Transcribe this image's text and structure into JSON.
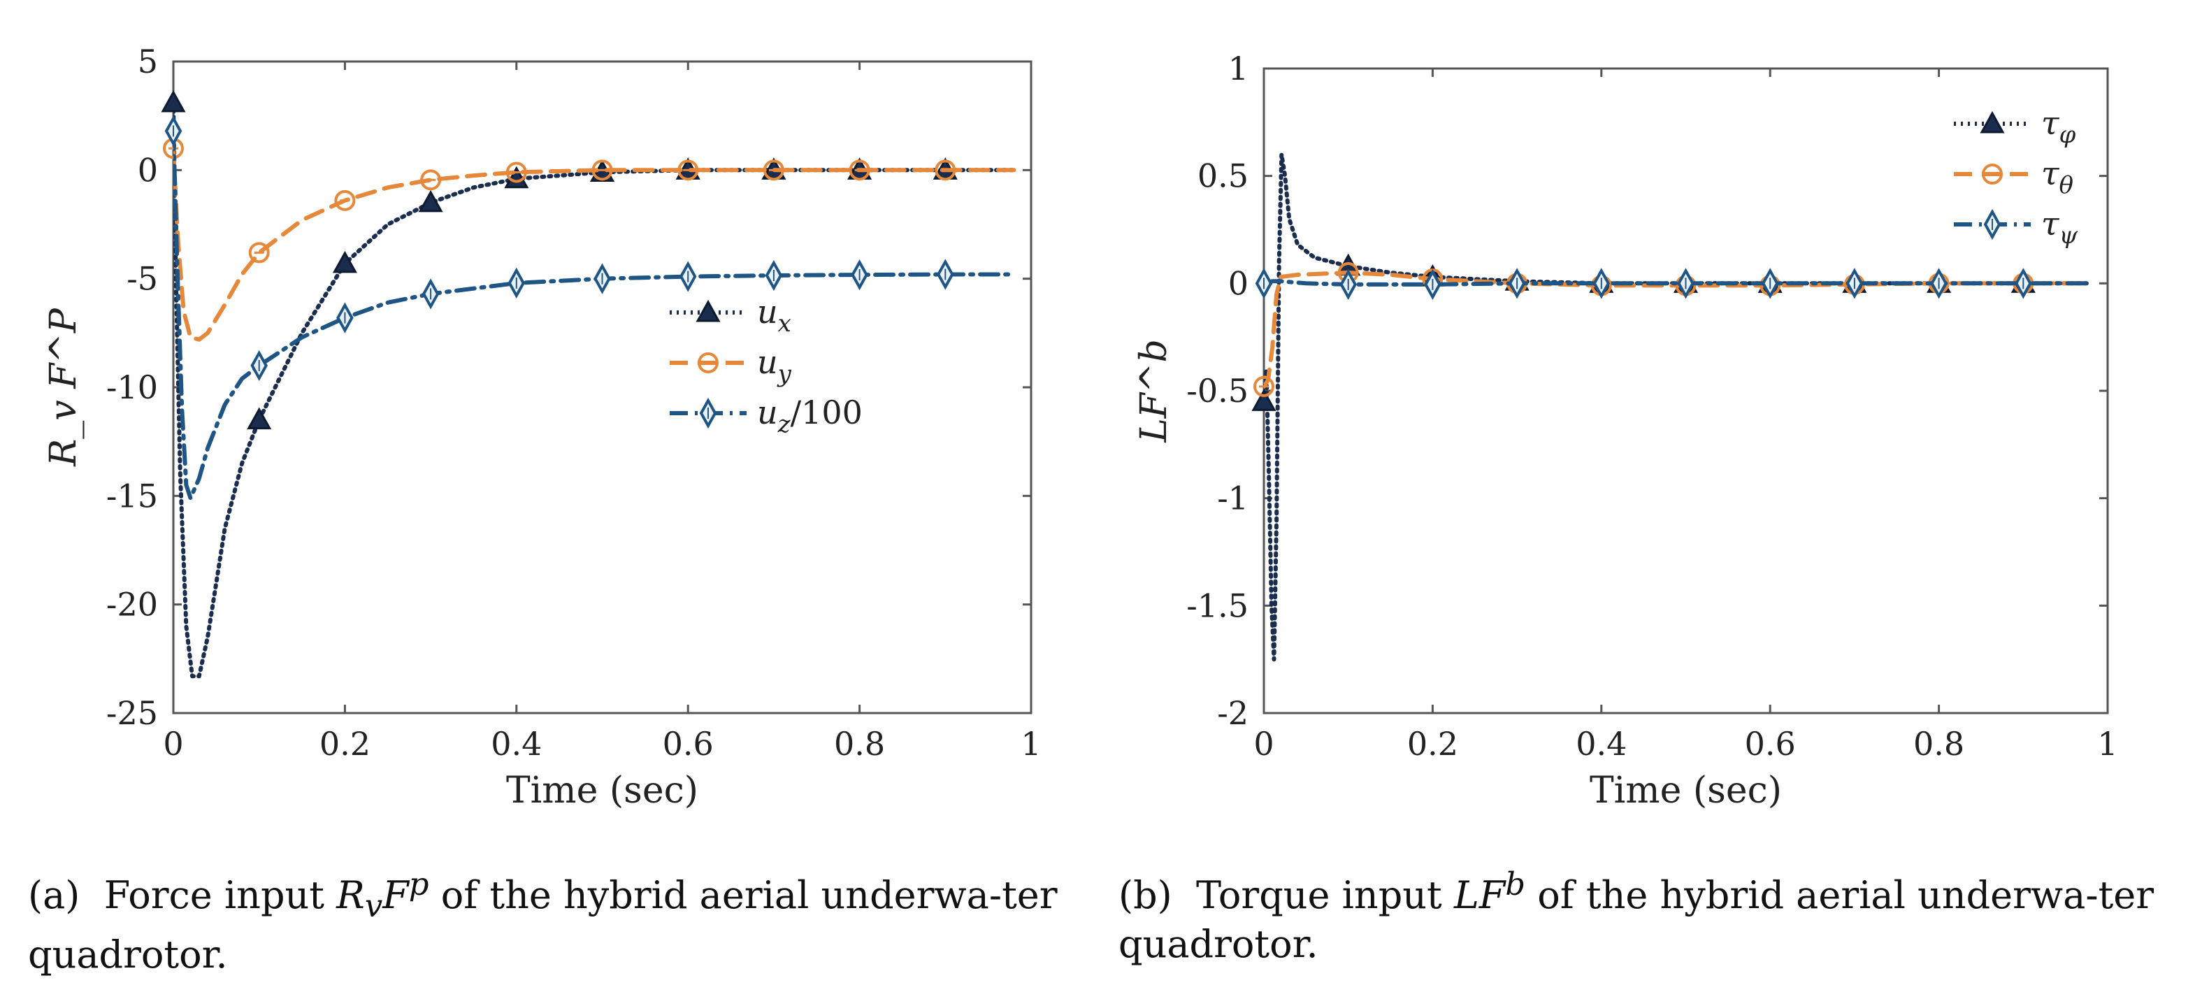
{
  "colors": {
    "navy": "#1a2d4f",
    "orange": "#e6883a",
    "blue": "#1f5585",
    "axis": "#555555"
  },
  "chart_data": [
    {
      "type": "line",
      "ylabel": "R_v F^P",
      "xlabel": "Time (sec)",
      "xlim": [
        0,
        1
      ],
      "ylim": [
        -25,
        5
      ],
      "xticks": [
        "0",
        "0.2",
        "0.4",
        "0.6",
        "0.8",
        "1"
      ],
      "yticks": [
        "5",
        "0",
        "-5",
        "-10",
        "-15",
        "-20",
        "-25"
      ],
      "legend_position": "right-middle",
      "series": [
        {
          "name": "u_x",
          "legend": "u",
          "sub": "x",
          "style": "dotted",
          "marker": "triangle",
          "color": "navy",
          "x": [
            0,
            0.003,
            0.008,
            0.015,
            0.022,
            0.03,
            0.04,
            0.05,
            0.06,
            0.08,
            0.1,
            0.15,
            0.2,
            0.25,
            0.3,
            0.35,
            0.4,
            0.5,
            0.6,
            0.7,
            0.8,
            0.9,
            0.98
          ],
          "y": [
            3.1,
            -5,
            -14,
            -21,
            -23.3,
            -23.3,
            -21.5,
            -19,
            -16.5,
            -13.5,
            -11.5,
            -7.5,
            -4.3,
            -2.5,
            -1.5,
            -0.8,
            -0.4,
            -0.1,
            0,
            0,
            0,
            0,
            0
          ],
          "markers_x": [
            0,
            0.1,
            0.2,
            0.3,
            0.4,
            0.5,
            0.6,
            0.7,
            0.8,
            0.9
          ],
          "markers_y": [
            3.1,
            -11.5,
            -4.3,
            -1.5,
            -0.4,
            -0.1,
            0,
            0,
            0,
            0
          ]
        },
        {
          "name": "u_y",
          "legend": "u",
          "sub": "y",
          "style": "dashed",
          "marker": "circle",
          "color": "orange",
          "x": [
            0,
            0.005,
            0.012,
            0.02,
            0.03,
            0.04,
            0.06,
            0.08,
            0.1,
            0.15,
            0.2,
            0.25,
            0.3,
            0.35,
            0.4,
            0.5,
            0.6,
            0.7,
            0.8,
            0.9,
            0.98
          ],
          "y": [
            1,
            -3,
            -6.5,
            -7.7,
            -7.8,
            -7.5,
            -6.2,
            -4.8,
            -3.8,
            -2.3,
            -1.4,
            -0.8,
            -0.45,
            -0.25,
            -0.1,
            0,
            0,
            0,
            0,
            0,
            0
          ],
          "markers_x": [
            0,
            0.1,
            0.2,
            0.3,
            0.4,
            0.5,
            0.6,
            0.7,
            0.8,
            0.9
          ],
          "markers_y": [
            1,
            -3.8,
            -1.4,
            -0.45,
            -0.1,
            0,
            0,
            0,
            0,
            0
          ]
        },
        {
          "name": "u_z/100",
          "legend": "u",
          "sub": "z",
          "suffix": "/100",
          "style": "dashdot",
          "marker": "diamond",
          "color": "blue",
          "x": [
            0,
            0.005,
            0.01,
            0.015,
            0.02,
            0.03,
            0.04,
            0.06,
            0.08,
            0.1,
            0.15,
            0.2,
            0.25,
            0.3,
            0.4,
            0.5,
            0.6,
            0.7,
            0.8,
            0.9,
            0.98
          ],
          "y": [
            1.8,
            -5,
            -11,
            -14.5,
            -15.1,
            -14.2,
            -12.8,
            -10.8,
            -9.6,
            -9,
            -7.7,
            -6.8,
            -6.1,
            -5.7,
            -5.2,
            -5,
            -4.9,
            -4.85,
            -4.82,
            -4.8,
            -4.8
          ],
          "markers_x": [
            0,
            0.1,
            0.2,
            0.3,
            0.4,
            0.5,
            0.6,
            0.7,
            0.8,
            0.9
          ],
          "markers_y": [
            1.8,
            -9,
            -6.8,
            -5.7,
            -5.2,
            -5,
            -4.9,
            -4.85,
            -4.82,
            -4.8
          ]
        }
      ]
    },
    {
      "type": "line",
      "ylabel": "LF^b",
      "xlabel": "Time (sec)",
      "xlim": [
        0,
        1
      ],
      "ylim": [
        -2,
        1
      ],
      "xticks": [
        "0",
        "0.2",
        "0.4",
        "0.6",
        "0.8",
        "1"
      ],
      "yticks": [
        "1",
        "0.5",
        "0",
        "-0.5",
        "-1",
        "-1.5",
        "-2"
      ],
      "legend_position": "top-right",
      "series": [
        {
          "name": "tau_phi",
          "legend": "τ",
          "sub": "φ",
          "style": "dotted",
          "marker": "triangle",
          "color": "navy",
          "x": [
            0,
            0.003,
            0.006,
            0.009,
            0.012,
            0.015,
            0.018,
            0.021,
            0.025,
            0.03,
            0.04,
            0.06,
            0.1,
            0.15,
            0.2,
            0.3,
            0.4,
            0.5,
            0.6,
            0.7,
            0.8,
            0.9,
            0.98
          ],
          "y": [
            -0.55,
            -0.4,
            -0.9,
            -1.5,
            -1.75,
            -1.1,
            0.1,
            0.6,
            0.5,
            0.3,
            0.18,
            0.12,
            0.08,
            0.05,
            0.03,
            0.01,
            0,
            0,
            0,
            0,
            0,
            0,
            0
          ],
          "markers_x": [
            0,
            0.1,
            0.2,
            0.3,
            0.4,
            0.5,
            0.6,
            0.7,
            0.8,
            0.9
          ],
          "markers_y": [
            -0.55,
            0.08,
            0.03,
            0.01,
            0,
            0,
            0,
            0,
            0,
            0
          ]
        },
        {
          "name": "tau_theta",
          "legend": "τ",
          "sub": "θ",
          "style": "dashed",
          "marker": "circle",
          "color": "orange",
          "x": [
            0,
            0.005,
            0.01,
            0.015,
            0.02,
            0.04,
            0.07,
            0.1,
            0.15,
            0.2,
            0.3,
            0.4,
            0.5,
            0.6,
            0.7,
            0.8,
            0.9,
            0.98
          ],
          "y": [
            -0.48,
            -0.45,
            -0.3,
            -0.05,
            0.03,
            0.04,
            0.045,
            0.05,
            0.04,
            0.02,
            0,
            -0.01,
            -0.01,
            -0.01,
            -0.005,
            0,
            0,
            0
          ],
          "markers_x": [
            0,
            0.1,
            0.2,
            0.3,
            0.4,
            0.5,
            0.6,
            0.7,
            0.8,
            0.9
          ],
          "markers_y": [
            -0.48,
            0.05,
            0.02,
            0,
            -0.01,
            -0.01,
            -0.01,
            -0.005,
            0,
            0
          ]
        },
        {
          "name": "tau_psi",
          "legend": "τ",
          "sub": "ψ",
          "style": "dashdot",
          "marker": "diamond",
          "color": "blue",
          "x": [
            0,
            0.01,
            0.02,
            0.05,
            0.1,
            0.2,
            0.3,
            0.4,
            0.5,
            0.6,
            0.7,
            0.8,
            0.9,
            0.98
          ],
          "y": [
            0,
            0.01,
            0.01,
            0,
            -0.005,
            -0.005,
            0,
            0,
            0,
            0,
            0,
            0,
            0,
            0
          ],
          "markers_x": [
            0,
            0.1,
            0.2,
            0.3,
            0.4,
            0.5,
            0.6,
            0.7,
            0.8,
            0.9
          ],
          "markers_y": [
            0,
            -0.005,
            -0.005,
            0,
            0,
            0,
            0,
            0,
            0,
            0
          ]
        }
      ]
    }
  ],
  "captions": {
    "a": {
      "label": "(a)",
      "pre": "Force input ",
      "math": "R",
      "sub": "v",
      "math2": "F",
      "sup": "p",
      "post": " of the hybrid aerial underwa-ter quadrotor."
    },
    "b": {
      "label": "(b)",
      "pre": "Torque input ",
      "math": "LF",
      "sup": "b",
      "post": " of the hybrid aerial underwa-ter quadrotor."
    }
  }
}
